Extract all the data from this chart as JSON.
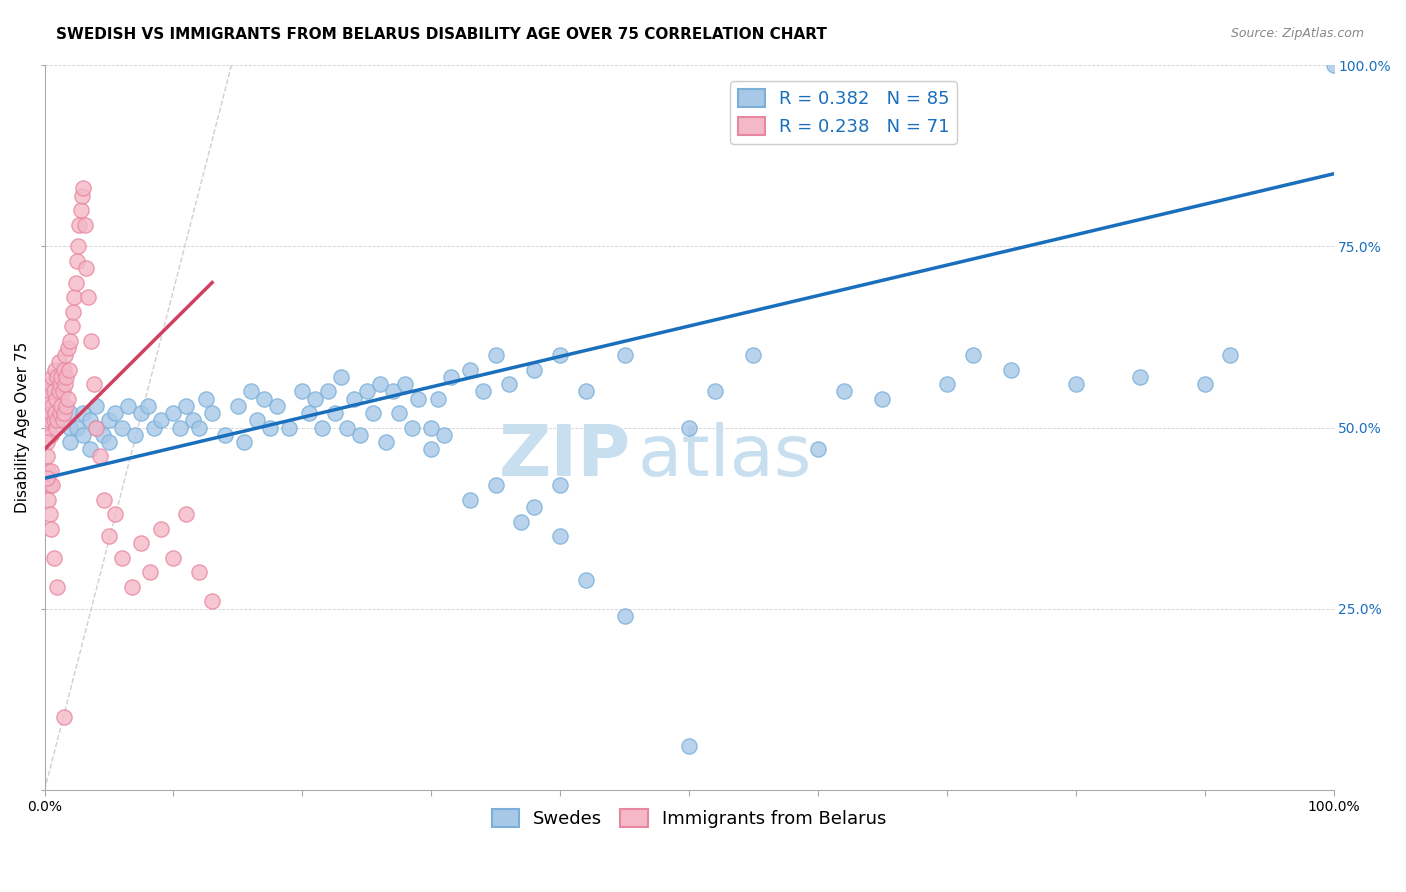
{
  "title": "SWEDISH VS IMMIGRANTS FROM BELARUS DISABILITY AGE OVER 75 CORRELATION CHART",
  "source": "Source: ZipAtlas.com",
  "ylabel": "Disability Age Over 75",
  "legend_labels": [
    "Swedes",
    "Immigrants from Belarus"
  ],
  "legend_r_blue": "R = 0.382",
  "legend_n_blue": "N = 85",
  "legend_r_pink": "R = 0.238",
  "legend_n_pink": "N = 71",
  "blue_color": "#a8c8e8",
  "blue_edge_color": "#7ab0d8",
  "pink_color": "#f4b8c8",
  "pink_edge_color": "#e888a0",
  "blue_line_color": "#1a6fbd",
  "pink_line_color": "#d04060",
  "diag_line_color": "#d0d0d0",
  "watermark_zip": "ZIP",
  "watermark_atlas": "atlas",
  "watermark_color": "#c8dff0",
  "xmin": 0.0,
  "xmax": 1.0,
  "ymin": 0.0,
  "ymax": 1.0,
  "blue_scatter_x": [
    0.02,
    0.02,
    0.02,
    0.025,
    0.03,
    0.03,
    0.035,
    0.035,
    0.04,
    0.04,
    0.045,
    0.05,
    0.05,
    0.055,
    0.06,
    0.065,
    0.07,
    0.075,
    0.08,
    0.085,
    0.09,
    0.1,
    0.105,
    0.11,
    0.115,
    0.12,
    0.125,
    0.13,
    0.14,
    0.15,
    0.155,
    0.16,
    0.165,
    0.17,
    0.175,
    0.18,
    0.19,
    0.2,
    0.205,
    0.21,
    0.215,
    0.22,
    0.225,
    0.23,
    0.235,
    0.24,
    0.245,
    0.25,
    0.255,
    0.26,
    0.265,
    0.27,
    0.275,
    0.28,
    0.285,
    0.29,
    0.3,
    0.305,
    0.31,
    0.315,
    0.33,
    0.34,
    0.35,
    0.36,
    0.38,
    0.4,
    0.42,
    0.45,
    0.5,
    0.52,
    0.55,
    0.6,
    0.62,
    0.65,
    0.7,
    0.72,
    0.75,
    0.8,
    0.85,
    0.9,
    0.92,
    0.33,
    0.37,
    0.4,
    1.0
  ],
  "blue_scatter_y": [
    0.5,
    0.52,
    0.48,
    0.5,
    0.49,
    0.52,
    0.51,
    0.47,
    0.5,
    0.53,
    0.49,
    0.51,
    0.48,
    0.52,
    0.5,
    0.53,
    0.49,
    0.52,
    0.53,
    0.5,
    0.51,
    0.52,
    0.5,
    0.53,
    0.51,
    0.5,
    0.54,
    0.52,
    0.49,
    0.53,
    0.48,
    0.55,
    0.51,
    0.54,
    0.5,
    0.53,
    0.5,
    0.55,
    0.52,
    0.54,
    0.5,
    0.55,
    0.52,
    0.57,
    0.5,
    0.54,
    0.49,
    0.55,
    0.52,
    0.56,
    0.48,
    0.55,
    0.52,
    0.56,
    0.5,
    0.54,
    0.5,
    0.54,
    0.49,
    0.57,
    0.58,
    0.55,
    0.6,
    0.56,
    0.58,
    0.6,
    0.55,
    0.6,
    0.5,
    0.55,
    0.6,
    0.47,
    0.55,
    0.54,
    0.56,
    0.6,
    0.58,
    0.56,
    0.57,
    0.56,
    0.6,
    0.4,
    0.37,
    0.42,
    1.0
  ],
  "blue_scatter_low_x": [
    0.3,
    0.35,
    0.38,
    0.4,
    0.42,
    0.45,
    0.5
  ],
  "blue_scatter_low_y": [
    0.47,
    0.42,
    0.39,
    0.35,
    0.29,
    0.24,
    0.06
  ],
  "pink_scatter_x": [
    0.002,
    0.003,
    0.003,
    0.004,
    0.004,
    0.005,
    0.005,
    0.005,
    0.006,
    0.006,
    0.007,
    0.007,
    0.008,
    0.008,
    0.009,
    0.009,
    0.01,
    0.01,
    0.011,
    0.011,
    0.012,
    0.012,
    0.013,
    0.013,
    0.014,
    0.014,
    0.015,
    0.015,
    0.016,
    0.016,
    0.017,
    0.017,
    0.018,
    0.018,
    0.019,
    0.02,
    0.021,
    0.022,
    0.023,
    0.024,
    0.025,
    0.026,
    0.027,
    0.028,
    0.029,
    0.03,
    0.031,
    0.032,
    0.034,
    0.036,
    0.038,
    0.04,
    0.043,
    0.046,
    0.05,
    0.055,
    0.06,
    0.068,
    0.075,
    0.082,
    0.09,
    0.1,
    0.11,
    0.12,
    0.13,
    0.002,
    0.002,
    0.003,
    0.004,
    0.005,
    0.006
  ],
  "pink_scatter_y": [
    0.52,
    0.5,
    0.54,
    0.51,
    0.55,
    0.52,
    0.56,
    0.49,
    0.53,
    0.57,
    0.51,
    0.55,
    0.52,
    0.58,
    0.5,
    0.54,
    0.57,
    0.51,
    0.55,
    0.59,
    0.52,
    0.56,
    0.53,
    0.57,
    0.51,
    0.55,
    0.58,
    0.52,
    0.56,
    0.6,
    0.53,
    0.57,
    0.61,
    0.54,
    0.58,
    0.62,
    0.64,
    0.66,
    0.68,
    0.7,
    0.73,
    0.75,
    0.78,
    0.8,
    0.82,
    0.83,
    0.78,
    0.72,
    0.68,
    0.62,
    0.56,
    0.5,
    0.46,
    0.4,
    0.35,
    0.38,
    0.32,
    0.28,
    0.34,
    0.3,
    0.36,
    0.32,
    0.38,
    0.3,
    0.26,
    0.48,
    0.46,
    0.44,
    0.42,
    0.44,
    0.42
  ],
  "pink_scatter_low_x": [
    0.002,
    0.003,
    0.004,
    0.005,
    0.007,
    0.01,
    0.015
  ],
  "pink_scatter_low_y": [
    0.43,
    0.4,
    0.38,
    0.36,
    0.32,
    0.28,
    0.1
  ],
  "blue_line_x": [
    0.0,
    1.0
  ],
  "blue_line_y": [
    0.43,
    0.85
  ],
  "pink_line_x": [
    0.0,
    0.13
  ],
  "pink_line_y": [
    0.47,
    0.7
  ],
  "diag_line_x": [
    0.0,
    0.145
  ],
  "diag_line_y": [
    0.0,
    1.0
  ],
  "title_fontsize": 11,
  "source_fontsize": 9,
  "tick_fontsize": 10,
  "legend_fontsize": 13,
  "ylabel_fontsize": 11,
  "watermark_fontsize_zip": 52,
  "watermark_fontsize_atlas": 52
}
